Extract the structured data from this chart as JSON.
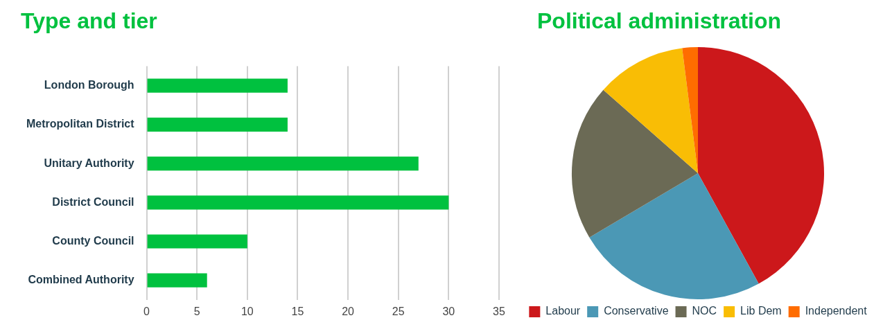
{
  "chart_data": [
    {
      "type": "bar",
      "title": "Type and tier",
      "orientation": "horizontal",
      "categories": [
        "London Borough",
        "Metropolitan District",
        "Unitary Authority",
        "District Council",
        "County Council",
        "Combined Authority"
      ],
      "values": [
        14,
        14,
        27,
        30,
        10,
        6
      ],
      "color": "#00c13f",
      "xlim": [
        0,
        35
      ],
      "xticks": [
        0,
        5,
        10,
        15,
        20,
        25,
        30,
        35
      ],
      "grid": "x",
      "legend": false
    },
    {
      "type": "pie",
      "title": "Political administration",
      "categories": [
        "Labour",
        "Conservative",
        "NOC",
        "Lib Dem",
        "Independent"
      ],
      "values": [
        42,
        24.5,
        20,
        11.5,
        2
      ],
      "colors": [
        "#cc181b",
        "#4b98b5",
        "#6b6a55",
        "#f9bd05",
        "#ff6c00"
      ],
      "legend": "bottom"
    }
  ]
}
